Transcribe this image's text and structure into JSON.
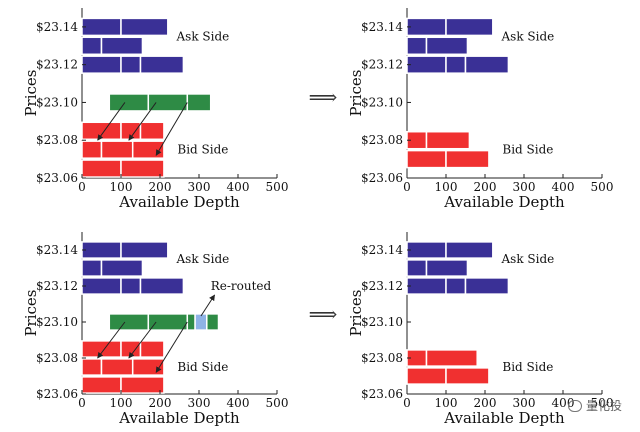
{
  "figure": {
    "arrow_symbol": "⟹",
    "watermark_text": "量化投"
  },
  "chart_data": [
    {
      "type": "bar",
      "panel": "top-left",
      "xlabel": "Available Depth",
      "ylabel": "Prices",
      "xlim": [
        0,
        500
      ],
      "xticks": [
        "0",
        "100",
        "200",
        "300",
        "400",
        "500"
      ],
      "yticks": [
        "$23.14",
        "$23.12",
        "$23.10",
        "$23.08",
        "$23.06"
      ],
      "ytick_values": [
        23.14,
        23.12,
        23.1,
        23.08,
        23.06
      ],
      "ylim": [
        23.06,
        23.15
      ],
      "annotations": [
        "Ask Side",
        "Bid Side"
      ],
      "bars": [
        {
          "side": "ask",
          "price": 23.14,
          "segments": [
            100,
            120
          ],
          "color": "#3a3096"
        },
        {
          "side": "ask",
          "price": 23.13,
          "segments": [
            50,
            105
          ],
          "color": "#3a3096"
        },
        {
          "side": "ask",
          "price": 23.12,
          "segments": [
            100,
            50,
            110
          ],
          "color": "#3a3096"
        },
        {
          "side": "order",
          "price": 23.1,
          "start": 70,
          "segments": [
            100,
            100,
            60
          ],
          "color": "#2e8b45"
        },
        {
          "side": "bid",
          "price": 23.085,
          "segments": [
            100,
            50,
            60
          ],
          "color": "#f03030"
        },
        {
          "side": "bid",
          "price": 23.075,
          "segments": [
            50,
            80,
            80
          ],
          "color": "#f03030"
        },
        {
          "side": "bid",
          "price": 23.065,
          "segments": [
            100,
            110
          ],
          "color": "#f03030"
        }
      ]
    },
    {
      "type": "bar",
      "panel": "top-right",
      "xlabel": "Available Depth",
      "ylabel": "Prices",
      "xlim": [
        0,
        500
      ],
      "xticks": [
        "0",
        "100",
        "200",
        "300",
        "400",
        "500"
      ],
      "yticks": [
        "$23.14",
        "$23.12",
        "$23.10",
        "$23.08",
        "$23.06"
      ],
      "ytick_values": [
        23.14,
        23.12,
        23.1,
        23.08,
        23.06
      ],
      "ylim": [
        23.06,
        23.15
      ],
      "annotations": [
        "Ask Side",
        "Bid Side"
      ],
      "bars": [
        {
          "side": "ask",
          "price": 23.14,
          "segments": [
            100,
            120
          ],
          "color": "#3a3096"
        },
        {
          "side": "ask",
          "price": 23.13,
          "segments": [
            50,
            105
          ],
          "color": "#3a3096"
        },
        {
          "side": "ask",
          "price": 23.12,
          "segments": [
            100,
            50,
            110
          ],
          "color": "#3a3096"
        },
        {
          "side": "bid",
          "price": 23.08,
          "segments": [
            50,
            110
          ],
          "color": "#f03030"
        },
        {
          "side": "bid",
          "price": 23.07,
          "segments": [
            100,
            110
          ],
          "color": "#f03030"
        }
      ]
    },
    {
      "type": "bar",
      "panel": "bottom-left",
      "xlabel": "Available Depth",
      "ylabel": "Prices",
      "xlim": [
        0,
        500
      ],
      "xticks": [
        "0",
        "100",
        "200",
        "300",
        "400",
        "500"
      ],
      "yticks": [
        "$23.14",
        "$23.12",
        "$23.10",
        "$23.08",
        "$23.06"
      ],
      "ytick_values": [
        23.14,
        23.12,
        23.1,
        23.08,
        23.06
      ],
      "ylim": [
        23.06,
        23.15
      ],
      "annotations": [
        "Ask Side",
        "Bid Side",
        "Re-routed"
      ],
      "bars": [
        {
          "side": "ask",
          "price": 23.14,
          "segments": [
            100,
            120
          ],
          "color": "#3a3096"
        },
        {
          "side": "ask",
          "price": 23.13,
          "segments": [
            50,
            105
          ],
          "color": "#3a3096"
        },
        {
          "side": "ask",
          "price": 23.12,
          "segments": [
            100,
            50,
            110
          ],
          "color": "#3a3096"
        },
        {
          "side": "order",
          "price": 23.1,
          "start": 70,
          "segments": [
            100,
            100,
            20,
            30,
            30
          ],
          "seg_colors": [
            "#2e8b45",
            "#2e8b45",
            "#2e8b45",
            "#8fb3e6",
            "#2e8b45"
          ]
        },
        {
          "side": "bid",
          "price": 23.085,
          "segments": [
            100,
            50,
            60
          ],
          "color": "#f03030"
        },
        {
          "side": "bid",
          "price": 23.075,
          "segments": [
            50,
            80,
            80
          ],
          "color": "#f03030"
        },
        {
          "side": "bid",
          "price": 23.065,
          "segments": [
            100,
            110
          ],
          "color": "#f03030"
        }
      ]
    },
    {
      "type": "bar",
      "panel": "bottom-right",
      "xlabel": "Available Depth",
      "ylabel": "Prices",
      "xlim": [
        0,
        500
      ],
      "xticks": [
        "0",
        "100",
        "200",
        "300",
        "400",
        "500"
      ],
      "yticks": [
        "$23.14",
        "$23.12",
        "$23.10",
        "$23.08",
        "$23.06"
      ],
      "ytick_values": [
        23.14,
        23.12,
        23.1,
        23.08,
        23.06
      ],
      "ylim": [
        23.06,
        23.15
      ],
      "annotations": [
        "Ask Side",
        "Bid Side"
      ],
      "bars": [
        {
          "side": "ask",
          "price": 23.14,
          "segments": [
            100,
            120
          ],
          "color": "#3a3096"
        },
        {
          "side": "ask",
          "price": 23.13,
          "segments": [
            50,
            105
          ],
          "color": "#3a3096"
        },
        {
          "side": "ask",
          "price": 23.12,
          "segments": [
            100,
            50,
            110
          ],
          "color": "#3a3096"
        },
        {
          "side": "bid",
          "price": 23.08,
          "segments": [
            50,
            130
          ],
          "color": "#f03030"
        },
        {
          "side": "bid",
          "price": 23.07,
          "segments": [
            100,
            110
          ],
          "color": "#f03030"
        }
      ]
    }
  ]
}
